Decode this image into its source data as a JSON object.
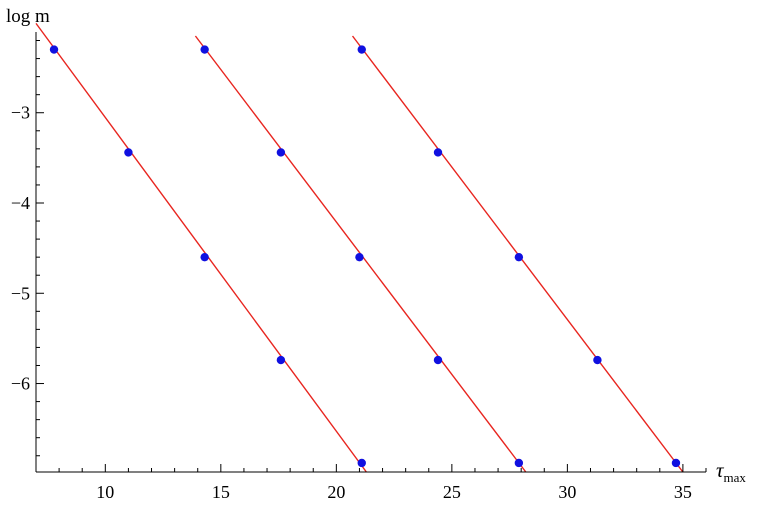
{
  "chart_data": {
    "type": "scatter",
    "xlabel_base": "τ",
    "xlabel_sub": "max",
    "ylabel": "log m",
    "xlim": [
      7,
      36
    ],
    "ylim": [
      -6.98,
      -2.15
    ],
    "x_ticks": [
      10,
      15,
      20,
      25,
      30,
      35
    ],
    "y_ticks": [
      -3,
      -4,
      -5,
      -6
    ],
    "colors": {
      "line": "#e8251f",
      "point": "#1010e0"
    },
    "series": [
      {
        "points": [
          [
            7.78,
            -2.3
          ],
          [
            11.0,
            -3.44
          ],
          [
            14.3,
            -4.6
          ],
          [
            17.6,
            -5.74
          ],
          [
            21.1,
            -6.88
          ]
        ],
        "line": [
          [
            7.0,
            -2.01
          ],
          [
            21.3,
            -6.98
          ]
        ]
      },
      {
        "points": [
          [
            14.3,
            -2.3
          ],
          [
            17.6,
            -3.44
          ],
          [
            21.0,
            -4.6
          ],
          [
            24.4,
            -5.74
          ],
          [
            27.9,
            -6.88
          ]
        ],
        "line": [
          [
            13.9,
            -2.15
          ],
          [
            28.2,
            -6.98
          ]
        ]
      },
      {
        "points": [
          [
            21.1,
            -2.3
          ],
          [
            24.4,
            -3.44
          ],
          [
            27.9,
            -4.6
          ],
          [
            31.3,
            -5.74
          ],
          [
            34.7,
            -6.88
          ]
        ],
        "line": [
          [
            20.7,
            -2.15
          ],
          [
            35.0,
            -6.98
          ]
        ]
      }
    ]
  }
}
